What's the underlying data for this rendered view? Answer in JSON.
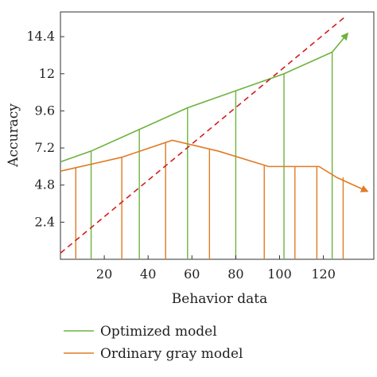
{
  "chart_data": {
    "type": "line",
    "xlabel": "Behavior data",
    "ylabel": "Accuracy",
    "x_ticks": [
      20,
      40,
      60,
      80,
      100,
      120
    ],
    "y_ticks": [
      2.4,
      4.8,
      7.2,
      9.6,
      12,
      14.4
    ],
    "xlim": [
      0,
      143
    ],
    "ylim": [
      0,
      16
    ],
    "colors": {
      "optimized": "#6db33f",
      "ordinary": "#e07b24",
      "diagonal": "#d11f1f"
    },
    "series": [
      {
        "name": "Optimized model",
        "color": "#6db33f",
        "x": [
          0,
          14,
          36,
          58,
          80,
          102,
          124
        ],
        "y": [
          6.3,
          7.0,
          8.4,
          9.8,
          10.9,
          12.0,
          13.4
        ],
        "arrow_to": [
          131,
          14.6
        ],
        "drop_lines_x": [
          14,
          36,
          58,
          80,
          102,
          124
        ]
      },
      {
        "name": "Ordinary gray model",
        "color": "#e07b24",
        "x": [
          0,
          28,
          51,
          72,
          95,
          118,
          126
        ],
        "y": [
          5.7,
          6.6,
          7.7,
          7.0,
          6.0,
          6.0,
          5.3
        ],
        "arrow_to": [
          140,
          4.4
        ],
        "drop_lines_x": [
          7,
          28,
          48,
          68,
          93,
          107,
          117,
          129
        ]
      }
    ],
    "reference_line": {
      "style": "dashed",
      "color": "#d11f1f",
      "x": [
        0,
        130
      ],
      "y": [
        0.4,
        15.7
      ]
    },
    "legend": {
      "position": "bottom",
      "entries": [
        "Optimized model",
        "Ordinary gray model"
      ]
    },
    "grid": false
  }
}
